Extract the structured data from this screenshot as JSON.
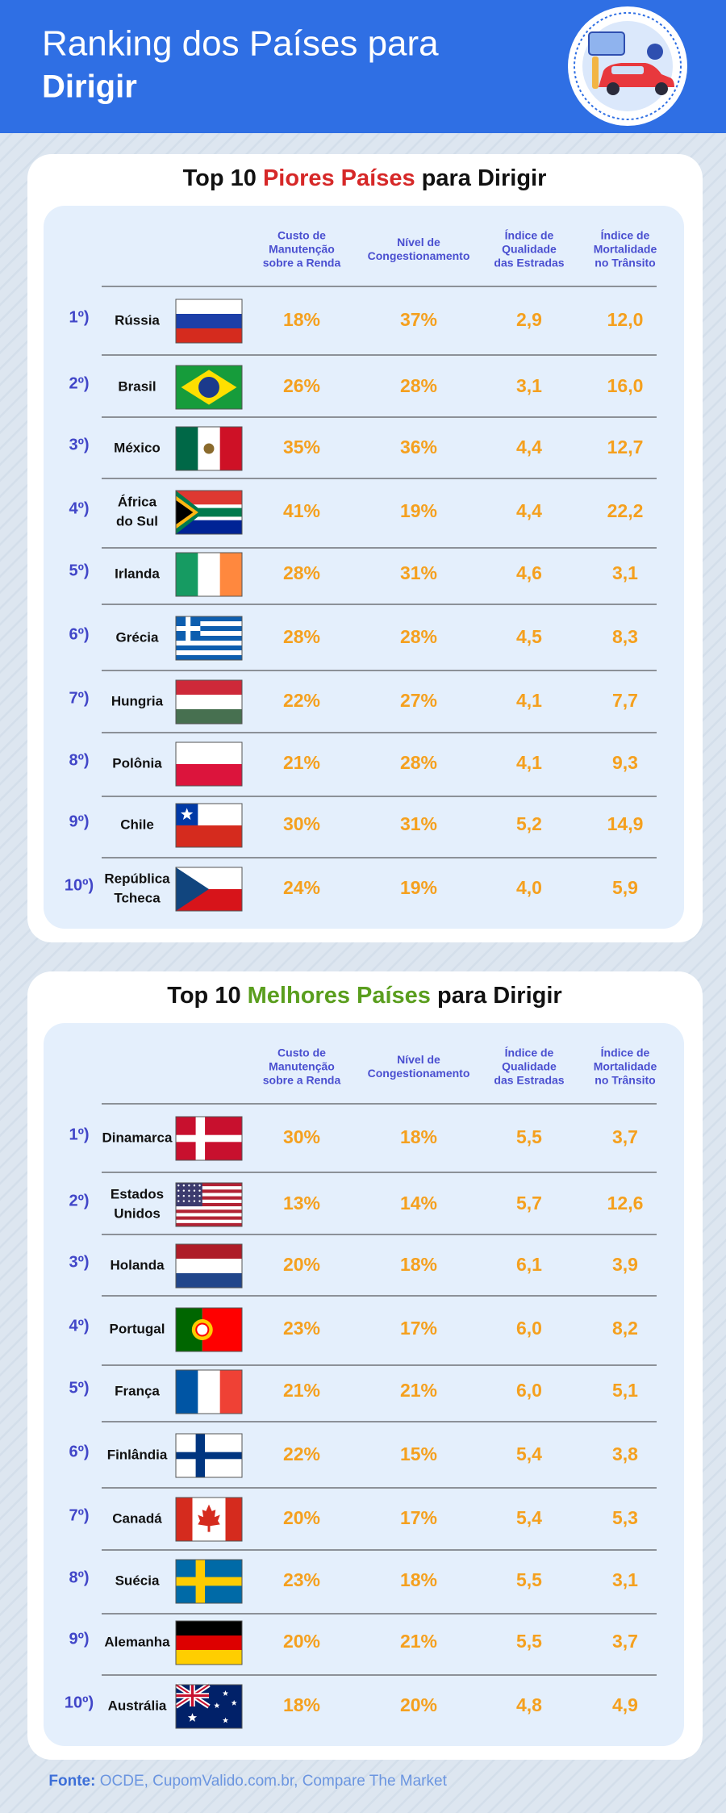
{
  "header": {
    "title": [
      "Ranking dos Países para",
      "Dirigir"
    ]
  },
  "tables": [
    {
      "title": [
        "Top 10 ",
        "Piores Países",
        " para Dirigir"
      ],
      "columns": [
        [
          "Custo de",
          "Manutenção",
          "sobre a Renda"
        ],
        [
          "Nível de",
          "Congestionamento"
        ],
        [
          "Índice de",
          "Qualidade",
          "das Estradas"
        ],
        [
          "Índice de",
          "Mortalidade",
          "no Trânsito"
        ]
      ],
      "rows": [
        {
          "rank": "1º)",
          "country": [
            "Rússia"
          ],
          "values": [
            "18%",
            "37%",
            "2,9",
            "12,0"
          ]
        },
        {
          "rank": "2º)",
          "country": [
            "Brasil"
          ],
          "values": [
            "26%",
            "28%",
            "3,1",
            "16,0"
          ]
        },
        {
          "rank": "3º)",
          "country": [
            "México"
          ],
          "values": [
            "35%",
            "36%",
            "4,4",
            "12,7"
          ]
        },
        {
          "rank": "4º)",
          "country": [
            "África",
            "do Sul"
          ],
          "values": [
            "41%",
            "19%",
            "4,4",
            "22,2"
          ]
        },
        {
          "rank": "5º)",
          "country": [
            "Irlanda"
          ],
          "values": [
            "28%",
            "31%",
            "4,6",
            "3,1"
          ]
        },
        {
          "rank": "6º)",
          "country": [
            "Grécia"
          ],
          "values": [
            "28%",
            "28%",
            "4,5",
            "8,3"
          ]
        },
        {
          "rank": "7º)",
          "country": [
            "Hungria"
          ],
          "values": [
            "22%",
            "27%",
            "4,1",
            "7,7"
          ]
        },
        {
          "rank": "8º)",
          "country": [
            "Polônia"
          ],
          "values": [
            "21%",
            "28%",
            "4,1",
            "9,3"
          ]
        },
        {
          "rank": "9º)",
          "country": [
            "Chile"
          ],
          "values": [
            "30%",
            "31%",
            "5,2",
            "14,9"
          ]
        },
        {
          "rank": "10º)",
          "country": [
            "República",
            "Tcheca"
          ],
          "values": [
            "24%",
            "19%",
            "4,0",
            "5,9"
          ]
        }
      ]
    },
    {
      "title": [
        "Top 10 ",
        "Melhores Países",
        " para Dirigir"
      ],
      "columns": [
        [
          "Custo de",
          "Manutenção",
          "sobre a Renda"
        ],
        [
          "Nível de",
          "Congestionamento"
        ],
        [
          "Índice de",
          "Qualidade",
          "das Estradas"
        ],
        [
          "Índice de",
          "Mortalidade",
          "no Trânsito"
        ]
      ],
      "rows": [
        {
          "rank": "1º)",
          "country": [
            "Dinamarca"
          ],
          "values": [
            "30%",
            "18%",
            "5,5",
            "3,7"
          ]
        },
        {
          "rank": "2º)",
          "country": [
            "Estados",
            "Unidos"
          ],
          "values": [
            "13%",
            "14%",
            "5,7",
            "12,6"
          ]
        },
        {
          "rank": "3º)",
          "country": [
            "Holanda"
          ],
          "values": [
            "20%",
            "18%",
            "6,1",
            "3,9"
          ]
        },
        {
          "rank": "4º)",
          "country": [
            "Portugal"
          ],
          "values": [
            "23%",
            "17%",
            "6,0",
            "8,2"
          ]
        },
        {
          "rank": "5º)",
          "country": [
            "França"
          ],
          "values": [
            "21%",
            "21%",
            "6,0",
            "5,1"
          ]
        },
        {
          "rank": "6º)",
          "country": [
            "Finlândia"
          ],
          "values": [
            "22%",
            "15%",
            "5,4",
            "3,8"
          ]
        },
        {
          "rank": "7º)",
          "country": [
            "Canadá"
          ],
          "values": [
            "20%",
            "17%",
            "5,4",
            "5,3"
          ]
        },
        {
          "rank": "8º)",
          "country": [
            "Suécia"
          ],
          "values": [
            "23%",
            "18%",
            "5,5",
            "3,1"
          ]
        },
        {
          "rank": "9º)",
          "country": [
            "Alemanha"
          ],
          "values": [
            "20%",
            "21%",
            "5,5",
            "3,7"
          ]
        },
        {
          "rank": "10º)",
          "country": [
            "Austrália"
          ],
          "values": [
            "18%",
            "20%",
            "4,8",
            "4,9"
          ]
        }
      ]
    }
  ],
  "source": [
    "Fonte:",
    " OCDE, CupomValido.com.br, Compare The Market"
  ]
}
